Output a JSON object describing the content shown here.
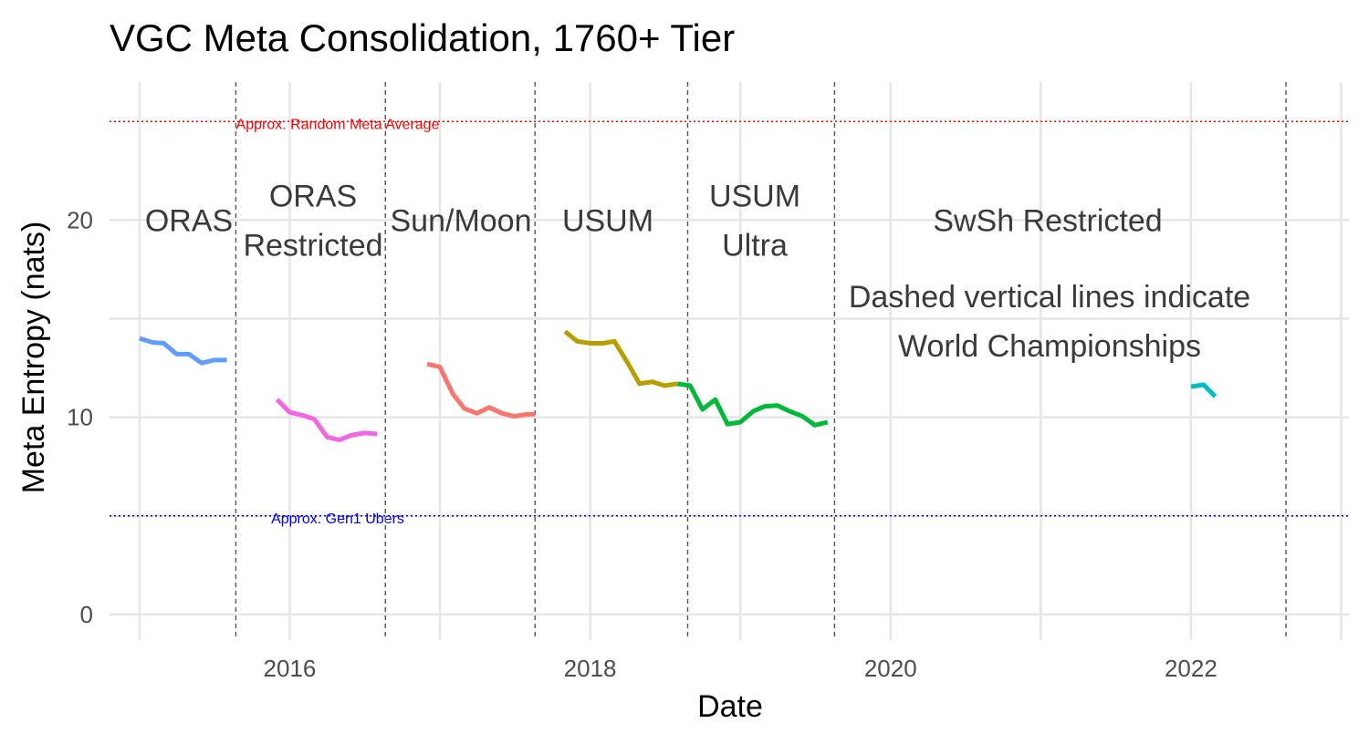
{
  "chart_data": {
    "type": "line",
    "title": "VGC Meta Consolidation, 1760+ Tier",
    "xlabel": "Date",
    "ylabel": "Meta Entropy (nats)",
    "x_ticks": [
      "2016",
      "2018",
      "2020",
      "2022"
    ],
    "y_ticks": [
      "0",
      "10",
      "20"
    ],
    "xlim": [
      "2014-10-20",
      "2023-01-20"
    ],
    "ylim": [
      -1.3,
      27
    ],
    "grid": true,
    "legend": "none",
    "reference_lines": [
      {
        "label": "Approx. Random Meta Average",
        "y": 25,
        "color": "#ff0000",
        "style": "dotted"
      },
      {
        "label": "Approx. Gen1 Ubers",
        "y": 5,
        "color": "#0000ff",
        "style": "dotted"
      }
    ],
    "worlds_dates": [
      "2015-08-23",
      "2016-08-21",
      "2017-08-20",
      "2018-08-26",
      "2019-08-18",
      "2022-08-20"
    ],
    "annotation": [
      "Dashed vertical lines indicate",
      "World Championships"
    ],
    "series": [
      {
        "name": "ORAS",
        "color": "#619CFF",
        "label_lines": [
          "ORAS"
        ],
        "points": [
          [
            "2015-01-01",
            14.0
          ],
          [
            "2015-02-01",
            13.8
          ],
          [
            "2015-03-01",
            13.75
          ],
          [
            "2015-04-01",
            13.2
          ],
          [
            "2015-05-01",
            13.2
          ],
          [
            "2015-06-01",
            12.75
          ],
          [
            "2015-07-01",
            12.9
          ],
          [
            "2015-08-01",
            12.9
          ]
        ]
      },
      {
        "name": "ORAS Restricted",
        "color": "#F564E3",
        "label_lines": [
          "ORAS",
          "Restricted"
        ],
        "points": [
          [
            "2015-12-01",
            10.9
          ],
          [
            "2016-01-01",
            10.25
          ],
          [
            "2016-02-01",
            10.1
          ],
          [
            "2016-03-01",
            9.9
          ],
          [
            "2016-04-01",
            9.0
          ],
          [
            "2016-05-01",
            8.85
          ],
          [
            "2016-06-01",
            9.1
          ],
          [
            "2016-07-01",
            9.2
          ],
          [
            "2016-08-01",
            9.15
          ]
        ]
      },
      {
        "name": "Sun/Moon",
        "color": "#F8766D",
        "label_lines": [
          "Sun/Moon"
        ],
        "points": [
          [
            "2016-12-01",
            12.7
          ],
          [
            "2017-01-01",
            12.55
          ],
          [
            "2017-02-01",
            11.2
          ],
          [
            "2017-03-01",
            10.45
          ],
          [
            "2017-04-01",
            10.2
          ],
          [
            "2017-05-01",
            10.5
          ],
          [
            "2017-06-01",
            10.2
          ],
          [
            "2017-07-01",
            10.05
          ],
          [
            "2017-08-01",
            10.15
          ],
          [
            "2017-08-20",
            10.15
          ]
        ]
      },
      {
        "name": "USUM",
        "color": "#B79F00",
        "label_lines": [
          "USUM"
        ],
        "points": [
          [
            "2017-11-01",
            14.35
          ],
          [
            "2017-12-01",
            13.85
          ],
          [
            "2018-01-01",
            13.75
          ],
          [
            "2018-02-01",
            13.75
          ],
          [
            "2018-03-01",
            13.85
          ],
          [
            "2018-04-01",
            12.8
          ],
          [
            "2018-05-01",
            11.7
          ],
          [
            "2018-06-01",
            11.8
          ],
          [
            "2018-07-01",
            11.6
          ],
          [
            "2018-08-01",
            11.7
          ]
        ]
      },
      {
        "name": "USUM Ultra",
        "color": "#00BA38",
        "label_lines": [
          "USUM",
          "Ultra"
        ],
        "points": [
          [
            "2018-08-01",
            11.7
          ],
          [
            "2018-09-01",
            11.6
          ],
          [
            "2018-10-01",
            10.4
          ],
          [
            "2018-11-01",
            10.9
          ],
          [
            "2018-12-01",
            9.65
          ],
          [
            "2019-01-01",
            9.75
          ],
          [
            "2019-02-01",
            10.3
          ],
          [
            "2019-03-01",
            10.55
          ],
          [
            "2019-04-01",
            10.6
          ],
          [
            "2019-05-01",
            10.3
          ],
          [
            "2019-06-01",
            10.05
          ],
          [
            "2019-07-01",
            9.6
          ],
          [
            "2019-08-01",
            9.75
          ]
        ]
      },
      {
        "name": "SwSh Restricted",
        "color": "#00BFC4",
        "label_lines": [
          "SwSh Restricted"
        ],
        "points": [
          [
            "2022-01-01",
            11.55
          ],
          [
            "2022-02-01",
            11.65
          ],
          [
            "2022-03-01",
            11.05
          ]
        ]
      }
    ]
  }
}
